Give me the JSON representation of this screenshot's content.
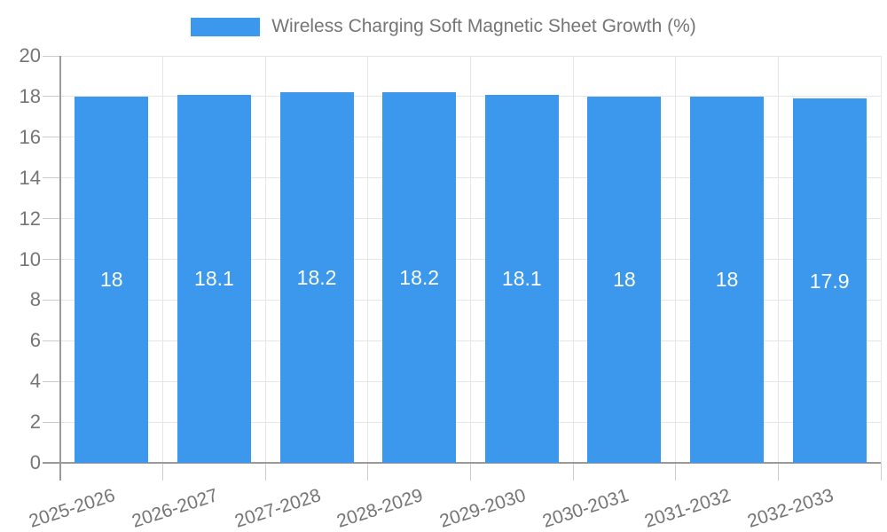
{
  "chart_data": {
    "type": "bar",
    "title": "Wireless Charging Soft Magnetic Sheet Growth (%)",
    "legend": {
      "position": "top",
      "label": "Wireless Charging Soft Magnetic Sheet Growth (%)"
    },
    "categories": [
      "2025-2026",
      "2026-2027",
      "2027-2028",
      "2028-2029",
      "2029-2030",
      "2030-2031",
      "2031-2032",
      "2032-2033"
    ],
    "series": [
      {
        "name": "Wireless Charging Soft Magnetic Sheet Growth (%)",
        "values": [
          18,
          18.1,
          18.2,
          18.2,
          18.1,
          18,
          18,
          17.9
        ],
        "value_labels": [
          "18",
          "18.1",
          "18.2",
          "18.2",
          "18.1",
          "18",
          "18",
          "17.9"
        ]
      }
    ],
    "xlabel": "",
    "ylabel": "",
    "ylim": [
      0,
      20
    ],
    "yticks": [
      0,
      2,
      4,
      6,
      8,
      10,
      12,
      14,
      16,
      18,
      20
    ],
    "grid": true
  },
  "colors": {
    "bar": "#3b98ec",
    "grid": "#e6e6e6",
    "tick": "#cccccc",
    "axis": "#9a9a9a",
    "text": "#757575",
    "bar_label": "#ffffff",
    "background": "#ffffff"
  }
}
